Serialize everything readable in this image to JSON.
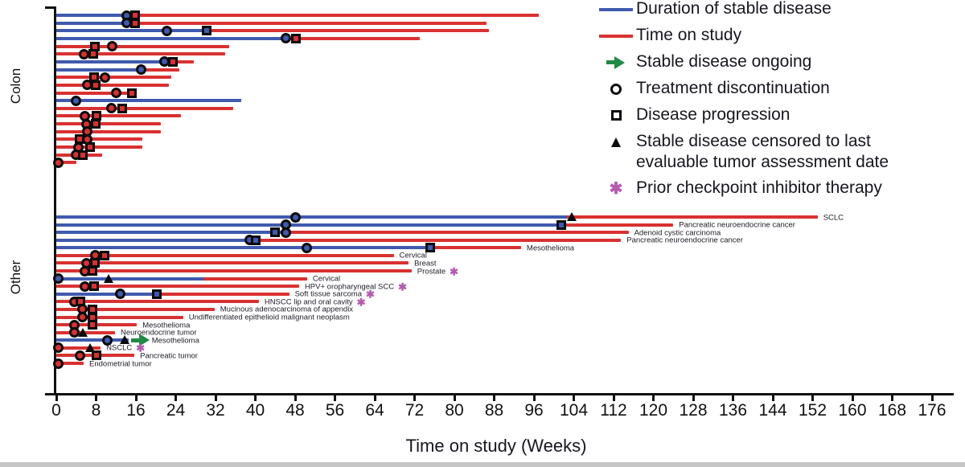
{
  "colors": {
    "stable_disease_blue": "#3f5aae",
    "time_on_study_red": "#d93131",
    "ongoing_green": "#1f8b45",
    "prior_checkpoint_purple": "#b55cb0",
    "axis_black": "#111111"
  },
  "legend": {
    "items": [
      {
        "icon": "blue-line-icon",
        "label": "Duration of stable disease"
      },
      {
        "icon": "red-line-icon",
        "label": "Time on study"
      },
      {
        "icon": "green-arrow-icon",
        "label": "Stable disease ongoing"
      },
      {
        "icon": "circle-icon",
        "label": "Treatment discontinuation"
      },
      {
        "icon": "square-icon",
        "label": "Disease progression"
      },
      {
        "icon": "triangle-icon",
        "label": "Stable disease censored to last evaluable tumor assessment date"
      },
      {
        "icon": "star-icon",
        "label": "Prior checkpoint inhibitor therapy"
      }
    ]
  },
  "chart_data": {
    "type": "swimmer",
    "x_axis": {
      "title": "Time on study (Weeks)",
      "min": 0,
      "max": 176,
      "tick_step": 8,
      "ticks": [
        0,
        8,
        16,
        24,
        32,
        40,
        48,
        56,
        64,
        72,
        80,
        88,
        96,
        104,
        112,
        120,
        128,
        136,
        144,
        152,
        160,
        168,
        176
      ]
    },
    "series": [
      {
        "name": "Duration of stable disease",
        "color": "#3f5aae"
      },
      {
        "name": "Time on study",
        "color": "#d93131"
      }
    ],
    "groups": [
      {
        "name": "Colon",
        "rows": [
          {
            "blue": 14.1,
            "red": 97,
            "markers": [
              [
                "circle",
                14.1
              ],
              [
                "square",
                15.9
              ]
            ]
          },
          {
            "blue": 14.1,
            "red": 86.5,
            "markers": [
              [
                "circle",
                14.1
              ],
              [
                "square",
                15.9
              ]
            ]
          },
          {
            "blue": 30.2,
            "red": 87,
            "markers": [
              [
                "circle",
                22.3
              ],
              [
                "square",
                30.2
              ]
            ]
          },
          {
            "blue": 46.2,
            "red": 73,
            "markers": [
              [
                "circle",
                46.2
              ],
              [
                "square",
                48.1
              ]
            ]
          },
          {
            "blue": 0,
            "red": 34.7,
            "markers": [
              [
                "square",
                7.7
              ],
              [
                "circle",
                11.3
              ]
            ]
          },
          {
            "blue": 0,
            "red": 34,
            "markers": [
              [
                "circle",
                5.5
              ],
              [
                "square",
                7.5
              ]
            ]
          },
          {
            "blue": 21.8,
            "red": 27.6,
            "markers": [
              [
                "circle",
                21.8
              ],
              [
                "square",
                23.4
              ]
            ]
          },
          {
            "blue": 17,
            "red": 24.7,
            "markers": [
              [
                "circle",
                17
              ]
            ]
          },
          {
            "blue": 0,
            "red": 23.1,
            "markers": [
              [
                "square",
                7.6
              ],
              [
                "circle",
                9.7
              ]
            ]
          },
          {
            "blue": 0,
            "red": 22.6,
            "markers": [
              [
                "circle",
                6.3
              ],
              [
                "square",
                7.9
              ]
            ]
          },
          {
            "blue": 0,
            "red": 16.2,
            "markers": [
              [
                "circle",
                12.1
              ],
              [
                "square",
                15.2
              ]
            ]
          },
          {
            "blue": 37.2,
            "red": 37.2,
            "markers": [
              [
                "circle",
                3.9
              ]
            ]
          },
          {
            "blue": 0,
            "red": 35.5,
            "markers": [
              [
                "circle",
                11
              ],
              [
                "square",
                13.2
              ]
            ]
          },
          {
            "blue": 0,
            "red": 25,
            "markers": [
              [
                "circle",
                5.7
              ],
              [
                "square",
                8.1
              ]
            ]
          },
          {
            "blue": 0,
            "red": 21,
            "markers": [
              [
                "circle",
                6
              ],
              [
                "square",
                7.9
              ]
            ]
          },
          {
            "blue": 0,
            "red": 21,
            "markers": [
              [
                "circle",
                6.3
              ]
            ]
          },
          {
            "blue": 0,
            "red": 17.3,
            "markers": [
              [
                "square",
                4.7
              ],
              [
                "circle",
                6.3
              ]
            ]
          },
          {
            "blue": 0,
            "red": 17.3,
            "markers": [
              [
                "circle",
                4.4
              ],
              [
                "square",
                6.8
              ]
            ]
          },
          {
            "blue": 0,
            "red": 9.2,
            "markers": [
              [
                "circle",
                4
              ],
              [
                "square",
                5.3
              ]
            ]
          },
          {
            "blue": 0,
            "red": 4,
            "markers": [
              [
                "circle",
                0.4
              ]
            ]
          }
        ]
      },
      {
        "name": "Other",
        "rows": [
          {
            "label": "SCLC",
            "blue": 102.6,
            "red": 153,
            "markers": [
              [
                "circle",
                48
              ],
              [
                "triangle",
                103.6
              ]
            ]
          },
          {
            "label": "Pancreatic neuroendocrine cancer",
            "blue": 101.3,
            "red": 124,
            "markers": [
              [
                "circle",
                46.2
              ],
              [
                "square",
                101.5
              ]
            ]
          },
          {
            "label": "Adenoid cystic carcinoma",
            "blue": 46.2,
            "red": 115,
            "markers": [
              [
                "square",
                44
              ],
              [
                "circle",
                46.2
              ]
            ]
          },
          {
            "label": "Pancreatic neuroendocrine cancer",
            "blue": 40.1,
            "red": 113.5,
            "markers": [
              [
                "circle",
                38.8
              ],
              [
                "square",
                40.1
              ]
            ]
          },
          {
            "label": "Mesothelioma",
            "blue": 75.1,
            "red": 93.4,
            "markers": [
              [
                "circle",
                50.4
              ],
              [
                "square",
                75.1
              ]
            ]
          },
          {
            "label": "Cervical",
            "blue": 0,
            "red": 67.8,
            "markers": [
              [
                "circle",
                7.8
              ],
              [
                "square",
                9.7
              ]
            ]
          },
          {
            "label": "Breast",
            "blue": 0,
            "red": 70.8,
            "markers": [
              [
                "circle",
                6
              ],
              [
                "square",
                7.8
              ]
            ]
          },
          {
            "label": "Prostate",
            "star": true,
            "blue": 0,
            "red": 71.4,
            "markers": [
              [
                "circle",
                5.7
              ],
              [
                "square",
                7.3
              ]
            ]
          },
          {
            "label": "Cervical",
            "blue": 29.5,
            "red": 50.4,
            "markers": [
              [
                "circle",
                0.4
              ],
              [
                "triangle",
                10.5
              ]
            ]
          },
          {
            "label": "HPV+ oropharyngeal SCC",
            "star": true,
            "blue": 0,
            "red": 48.8,
            "markers": [
              [
                "circle",
                5.7
              ],
              [
                "square",
                7.6
              ]
            ]
          },
          {
            "label": "Soft tissue sarcoma",
            "star": true,
            "blue": 20.2,
            "red": 46.8,
            "markers": [
              [
                "circle",
                12.9
              ],
              [
                "square",
                20.2
              ]
            ]
          },
          {
            "label": "HNSCC lip and oral cavity",
            "star": true,
            "blue": 0,
            "red": 40.7,
            "markers": [
              [
                "circle",
                3.6
              ],
              [
                "square",
                4.8
              ]
            ]
          },
          {
            "label": "Mucinous adenocarcinoma of appendix",
            "blue": 0,
            "red": 31.8,
            "markers": [
              [
                "circle",
                5.3
              ],
              [
                "square",
                7.3
              ]
            ]
          },
          {
            "label": "Undifferentiated epithelioid malignant neoplasm",
            "blue": 0,
            "red": 25.5,
            "markers": [
              [
                "circle",
                5.3
              ],
              [
                "square",
                7.3
              ]
            ]
          },
          {
            "label": "Mesothelioma",
            "blue": 0,
            "red": 16.2,
            "markers": [
              [
                "circle",
                3.6
              ],
              [
                "square",
                7.3
              ]
            ]
          },
          {
            "label": "Neuroendocrine tumor",
            "blue": 0,
            "red": 11.8,
            "markers": [
              [
                "circle",
                3.6
              ],
              [
                "triangle",
                5.3
              ]
            ]
          },
          {
            "label": "Mesothelioma",
            "ongoing": true,
            "blue": 14.5,
            "red": 14.5,
            "markers": [
              [
                "circle",
                10.3
              ],
              [
                "triangle",
                13.8
              ]
            ]
          },
          {
            "label": "NSCLC",
            "star": true,
            "blue": 0,
            "red": 8.9,
            "markers": [
              [
                "circle",
                0.4
              ],
              [
                "triangle",
                6.8
              ]
            ]
          },
          {
            "label": "Pancreatic tumor",
            "blue": 0,
            "red": 15.7,
            "markers": [
              [
                "circle",
                4.8
              ],
              [
                "square",
                8.1
              ]
            ]
          },
          {
            "label": "Endometrial tumor",
            "blue": 0,
            "red": 5.5,
            "markers": [
              [
                "circle",
                0.4
              ]
            ]
          }
        ]
      }
    ]
  }
}
